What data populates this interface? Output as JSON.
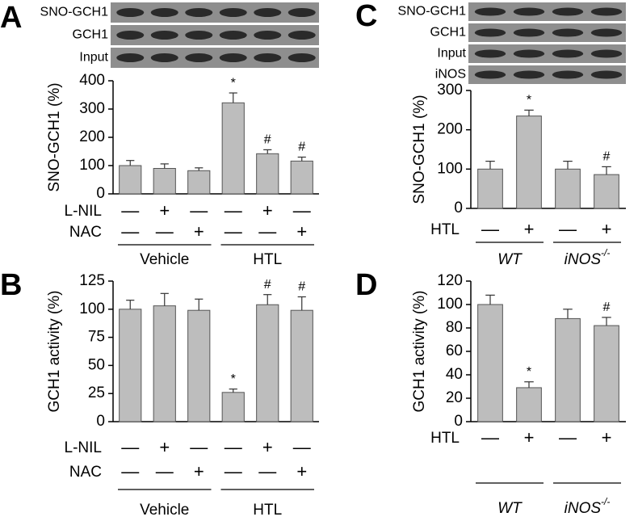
{
  "chart_data": [
    {
      "type": "bar",
      "panel": "A",
      "blot_labels": [
        "SNO-GCH1",
        "GCH1",
        "Input"
      ],
      "y_label": "SNO-GCH1 (%)",
      "categories": [
        null,
        null,
        null,
        null,
        null,
        null
      ],
      "values": [
        100,
        90,
        82,
        322,
        142,
        116
      ],
      "errors": [
        18,
        16,
        10,
        35,
        14,
        14
      ],
      "annotations": [
        null,
        null,
        null,
        "*",
        "#",
        "#"
      ],
      "treatments": [
        {
          "name": "L-NIL",
          "signs": [
            "—",
            "+",
            "—",
            "—",
            "+",
            "—"
          ]
        },
        {
          "name": "NAC",
          "signs": [
            "—",
            "—",
            "+",
            "—",
            "—",
            "+"
          ]
        }
      ],
      "groups": [
        {
          "label": "Vehicle"
        },
        {
          "label": "HTL"
        }
      ],
      "color": "#bdbdbd",
      "ylim": [
        0,
        400
      ],
      "yticks": [
        0,
        100,
        200,
        300,
        400
      ]
    },
    {
      "type": "bar",
      "panel": "B",
      "y_label": "GCH1 activity (%)",
      "categories": [
        null,
        null,
        null,
        null,
        null,
        null
      ],
      "values": [
        100,
        103,
        99,
        26,
        104,
        99
      ],
      "errors": [
        8,
        11,
        10,
        3,
        9,
        12
      ],
      "annotations": [
        null,
        null,
        null,
        "*",
        "#",
        "#"
      ],
      "treatments": [
        {
          "name": "L-NIL",
          "signs": [
            "—",
            "+",
            "—",
            "—",
            "+",
            "—"
          ]
        },
        {
          "name": "NAC",
          "signs": [
            "—",
            "—",
            "+",
            "—",
            "—",
            "+"
          ]
        }
      ],
      "groups": [
        {
          "label": "Vehicle"
        },
        {
          "label": "HTL"
        }
      ],
      "color": "#bdbdbd",
      "ylim": [
        0,
        125
      ],
      "yticks": [
        0,
        25,
        50,
        75,
        100,
        125
      ]
    },
    {
      "type": "bar",
      "panel": "C",
      "blot_labels": [
        "SNO-GCH1",
        "GCH1",
        "Input",
        "iNOS"
      ],
      "y_label": "SNO-GCH1 (%)",
      "categories": [
        null,
        null,
        null,
        null
      ],
      "values": [
        100,
        235,
        100,
        86
      ],
      "errors": [
        20,
        15,
        20,
        20
      ],
      "annotations": [
        null,
        "*",
        null,
        "#"
      ],
      "treatments": [
        {
          "name": "HTL",
          "signs": [
            "—",
            "+",
            "—",
            "+"
          ]
        }
      ],
      "groups": [
        {
          "label": "WT"
        },
        {
          "label": "iNOS",
          "sup": "-/-"
        }
      ],
      "color": "#bdbdbd",
      "ylim": [
        0,
        300
      ],
      "yticks": [
        0,
        100,
        200,
        300
      ]
    },
    {
      "type": "bar",
      "panel": "D",
      "y_label": "GCH1 activity (%)",
      "categories": [
        null,
        null,
        null,
        null
      ],
      "values": [
        100,
        29,
        88,
        82
      ],
      "errors": [
        8,
        5,
        8,
        7
      ],
      "annotations": [
        null,
        "*",
        null,
        "#"
      ],
      "treatments": [
        {
          "name": "HTL",
          "signs": [
            "—",
            "+",
            "—",
            "+"
          ]
        }
      ],
      "groups": [
        {
          "label": "WT"
        },
        {
          "label": "iNOS",
          "sup": "-/-"
        }
      ],
      "color": "#bdbdbd",
      "ylim": [
        0,
        120
      ],
      "yticks": [
        0,
        20,
        40,
        60,
        80,
        100,
        120
      ]
    }
  ]
}
